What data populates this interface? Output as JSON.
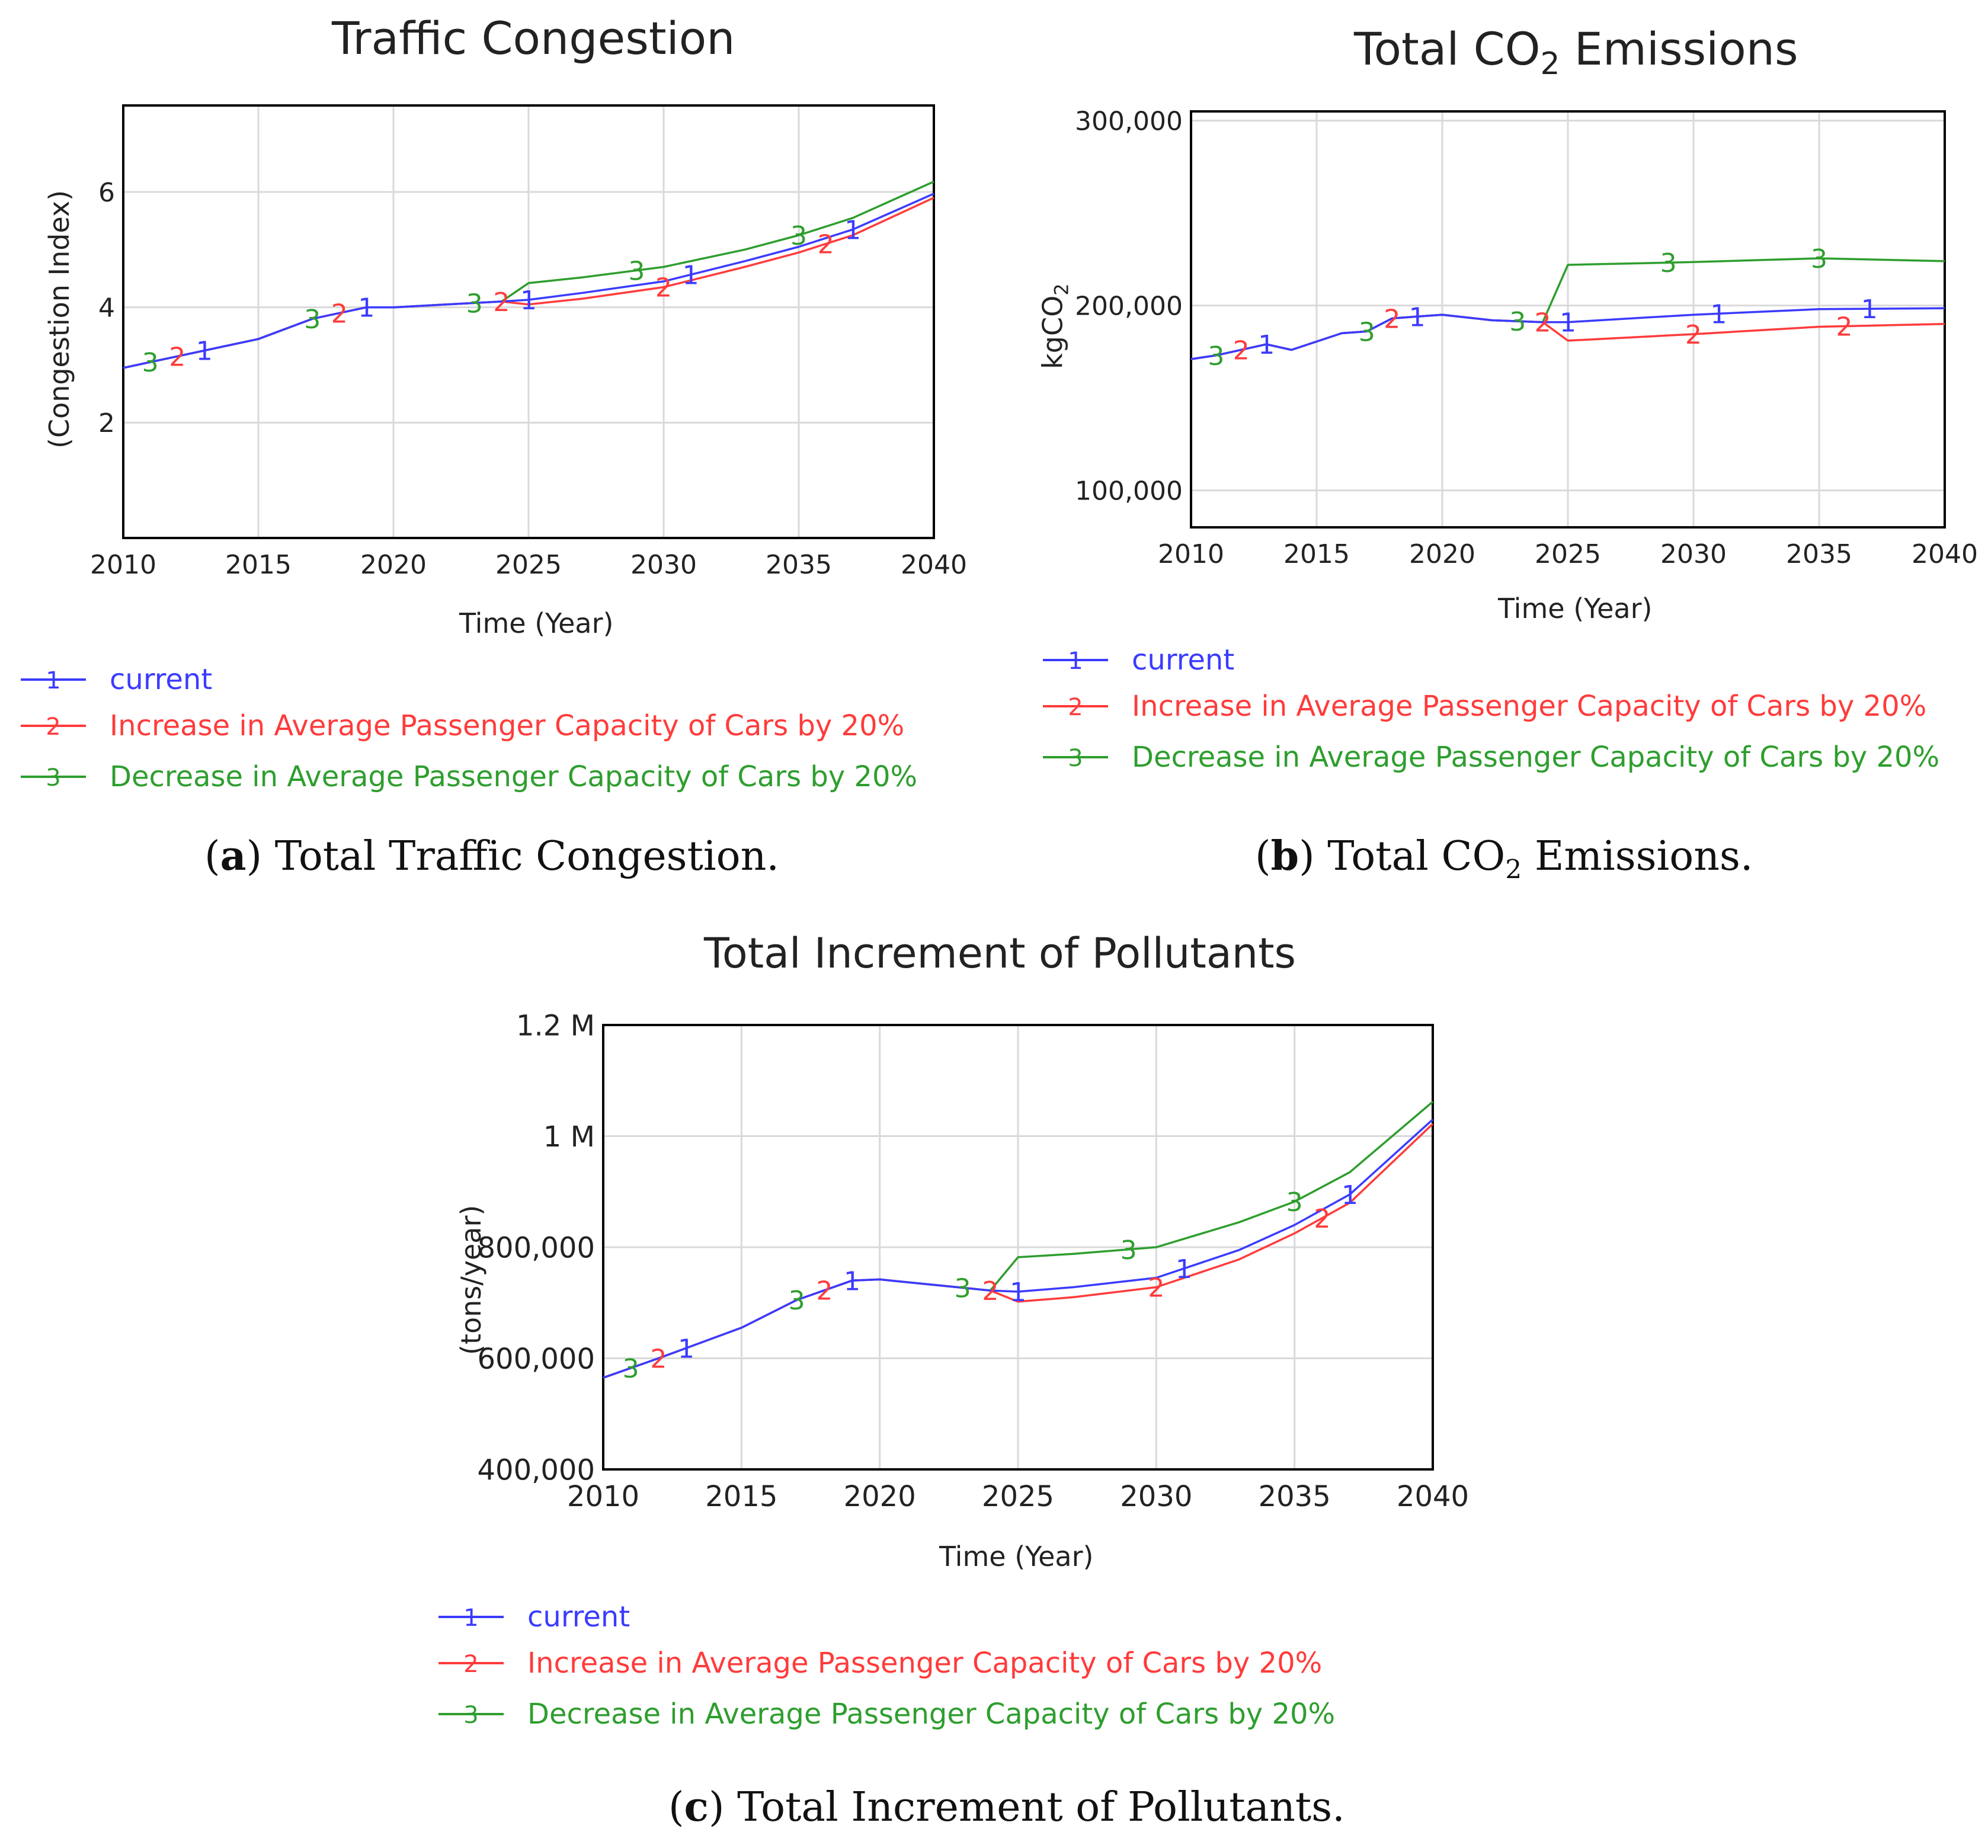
{
  "colors": {
    "current": "#3b3bff",
    "increase": "#ff3b3b",
    "decrease": "#2e9e2e",
    "grid": "#d9d9d9",
    "axis": "#000000"
  },
  "chart_data": [
    {
      "id": "a",
      "type": "line",
      "title": "Traffic Congestion",
      "xlabel": "Time (Year)",
      "ylabel": "(Congestion Index)",
      "xlim": [
        2010,
        2040
      ],
      "ylim": [
        0,
        7.5
      ],
      "xticks": [
        2010,
        2015,
        2020,
        2025,
        2030,
        2035,
        2040
      ],
      "yticks": [
        2,
        4,
        6
      ],
      "ytick_labels": [
        "2",
        "4",
        "6"
      ],
      "x": [
        2010,
        2012,
        2015,
        2017,
        2019,
        2020,
        2022,
        2024,
        2025,
        2027,
        2030,
        2033,
        2035,
        2037,
        2040
      ],
      "series": [
        {
          "name": "current",
          "marker": "1",
          "color_key": "current",
          "values": [
            2.95,
            3.15,
            3.45,
            3.8,
            4.0,
            4.0,
            4.05,
            4.1,
            4.13,
            4.25,
            4.45,
            4.8,
            5.05,
            5.35,
            5.97
          ],
          "marker_x": [
            2013,
            2019,
            2025,
            2031,
            2037
          ]
        },
        {
          "name": "Increase in Average Passenger Capacity of Cars by 20%",
          "marker": "2",
          "color_key": "increase",
          "values": [
            2.95,
            3.15,
            3.45,
            3.8,
            4.0,
            4.0,
            4.05,
            4.1,
            4.05,
            4.15,
            4.35,
            4.7,
            4.95,
            5.25,
            5.9
          ],
          "marker_x": [
            2012,
            2018,
            2024,
            2030,
            2036
          ]
        },
        {
          "name": "Decrease in Average Passenger Capacity of Cars by 20%",
          "marker": "3",
          "color_key": "decrease",
          "values": [
            2.95,
            3.15,
            3.45,
            3.8,
            4.0,
            4.0,
            4.05,
            4.1,
            4.42,
            4.52,
            4.7,
            5.0,
            5.25,
            5.55,
            6.18
          ],
          "marker_x": [
            2011,
            2017,
            2023,
            2029,
            2035
          ]
        }
      ],
      "legend_position": "bottom-left"
    },
    {
      "id": "b",
      "type": "line",
      "title": "Total CO",
      "title_sub": "2",
      "title_tail": " Emissions",
      "xlabel": "Time (Year)",
      "ylabel": "kgCO",
      "ylabel_sub": "2",
      "xlim": [
        2010,
        2040
      ],
      "ylim": [
        80000,
        305000
      ],
      "xticks": [
        2010,
        2015,
        2020,
        2025,
        2030,
        2035,
        2040
      ],
      "yticks": [
        100000,
        200000,
        300000
      ],
      "ytick_labels": [
        "100,000",
        "200,000",
        "300,000"
      ],
      "x": [
        2010,
        2011,
        2013,
        2014,
        2016,
        2017,
        2018,
        2020,
        2022,
        2024,
        2025,
        2030,
        2035,
        2040
      ],
      "series": [
        {
          "name": "current",
          "marker": "1",
          "color_key": "current",
          "values": [
            171000,
            173000,
            179000,
            176000,
            185000,
            186000,
            193000,
            195000,
            192000,
            191000,
            191000,
            195000,
            198000,
            198500
          ],
          "marker_x": [
            2013,
            2019,
            2025,
            2031,
            2037
          ]
        },
        {
          "name": "Increase in Average Passenger Capacity of Cars by 20%",
          "marker": "2",
          "color_key": "increase",
          "values": [
            171000,
            173000,
            179000,
            176000,
            185000,
            186000,
            193000,
            195000,
            192000,
            191000,
            181000,
            184500,
            188500,
            190000
          ],
          "marker_x": [
            2012,
            2018,
            2024,
            2030,
            2036
          ]
        },
        {
          "name": "Decrease in Average Passenger Capacity of Cars by 20%",
          "marker": "3",
          "color_key": "decrease",
          "values": [
            171000,
            173000,
            179000,
            176000,
            185000,
            186000,
            193000,
            195000,
            192000,
            191000,
            222000,
            223500,
            225500,
            224000
          ],
          "marker_x": [
            2011,
            2017,
            2023,
            2029,
            2035
          ]
        }
      ],
      "legend_position": "bottom-left"
    },
    {
      "id": "c",
      "type": "line",
      "title": "Total Increment of Pollutants",
      "xlabel": "Time (Year)",
      "ylabel": "(tons/year)",
      "xlim": [
        2010,
        2040
      ],
      "ylim": [
        400000,
        1200000
      ],
      "xticks": [
        2010,
        2015,
        2020,
        2025,
        2030,
        2035,
        2040
      ],
      "yticks": [
        400000,
        600000,
        800000,
        1000000,
        1200000
      ],
      "ytick_labels": [
        "400,000",
        "600,000",
        "800,000",
        "1 M",
        "1.2 M"
      ],
      "x": [
        2010,
        2012,
        2015,
        2017,
        2019,
        2020,
        2022,
        2024,
        2025,
        2027,
        2030,
        2033,
        2035,
        2037,
        2040
      ],
      "series": [
        {
          "name": "current",
          "marker": "1",
          "color_key": "current",
          "values": [
            565000,
            600000,
            655000,
            705000,
            740000,
            742000,
            732000,
            722000,
            720000,
            728000,
            745000,
            795000,
            840000,
            895000,
            1030000
          ],
          "marker_x": [
            2013,
            2019,
            2025,
            2031,
            2037
          ]
        },
        {
          "name": "Increase in Average Passenger Capacity of Cars by 20%",
          "marker": "2",
          "color_key": "increase",
          "values": [
            565000,
            600000,
            655000,
            705000,
            740000,
            742000,
            732000,
            722000,
            702000,
            710000,
            728000,
            778000,
            825000,
            880000,
            1022000
          ],
          "marker_x": [
            2012,
            2018,
            2024,
            2030,
            2036
          ]
        },
        {
          "name": "Decrease in Average Passenger Capacity of Cars by 20%",
          "marker": "3",
          "color_key": "decrease",
          "values": [
            565000,
            600000,
            655000,
            705000,
            740000,
            742000,
            732000,
            722000,
            782000,
            788000,
            800000,
            845000,
            882000,
            935000,
            1062000
          ],
          "marker_x": [
            2011,
            2017,
            2023,
            2029,
            2035
          ]
        }
      ],
      "legend_position": "bottom-left"
    }
  ],
  "legend": {
    "current": "current",
    "increase": "Increase in Average Passenger Capacity of Cars by 20%",
    "decrease": "Decrease in Average Passenger Capacity of Cars by 20%"
  },
  "captions": {
    "a_letter": "a",
    "a_text": " Total Traffic Congestion.",
    "b_letter": "b",
    "b_text_1": " Total CO",
    "b_sub": "2",
    "b_text_2": " Emissions.",
    "c_letter": "c",
    "c_text": " Total Increment of Pollutants."
  }
}
